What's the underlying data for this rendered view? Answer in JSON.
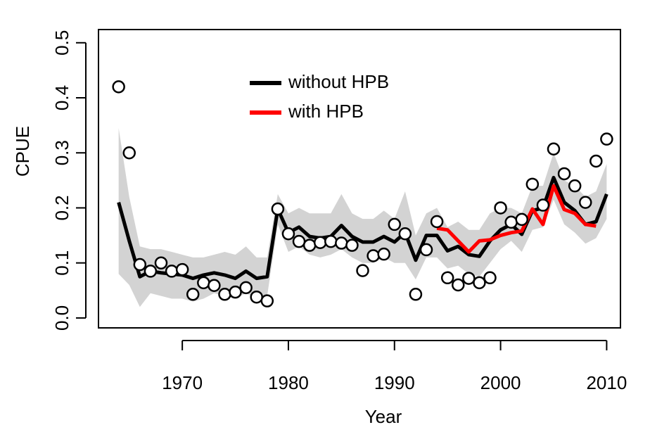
{
  "chart_data": {
    "type": "line",
    "xlabel": "Year",
    "ylabel": "CPUE",
    "xlim": [
      1962.1,
      2011.3
    ],
    "ylim": [
      -0.018,
      0.524
    ],
    "xticks": [
      1970,
      1980,
      1990,
      2000,
      2010
    ],
    "yticks": [
      {
        "value": 0,
        "label": "0.0"
      },
      0.1,
      0.2,
      0.3,
      0.4,
      0.5
    ],
    "x": [
      1964,
      1965,
      1966,
      1967,
      1968,
      1969,
      1970,
      1971,
      1972,
      1973,
      1974,
      1975,
      1976,
      1977,
      1978,
      1979,
      1980,
      1981,
      1982,
      1983,
      1984,
      1985,
      1986,
      1987,
      1988,
      1989,
      1990,
      1991,
      1992,
      1993,
      1994,
      1995,
      1996,
      1997,
      1998,
      1999,
      2000,
      2001,
      2002,
      2003,
      2004,
      2005,
      2006,
      2007,
      2008,
      2009,
      2010
    ],
    "band": {
      "color": "#d3d3d3",
      "upper": [
        0.345,
        0.22,
        0.13,
        0.125,
        0.125,
        0.12,
        0.115,
        0.11,
        0.11,
        0.115,
        0.12,
        0.115,
        0.13,
        0.11,
        0.11,
        0.225,
        0.19,
        0.2,
        0.19,
        0.19,
        0.19,
        0.225,
        0.19,
        0.18,
        0.18,
        0.195,
        0.18,
        0.23,
        0.15,
        0.19,
        0.2,
        0.165,
        0.175,
        0.16,
        0.16,
        0.19,
        0.2,
        0.2,
        0.19,
        0.24,
        0.24,
        0.3,
        0.25,
        0.24,
        0.22,
        0.23,
        0.28
      ],
      "lower": [
        0.08,
        0.06,
        0.02,
        0.045,
        0.04,
        0.035,
        0.035,
        0.03,
        0.035,
        0.045,
        0.04,
        0.035,
        0.045,
        0.035,
        0.04,
        0.17,
        0.12,
        0.13,
        0.115,
        0.11,
        0.115,
        0.125,
        0.11,
        0.1,
        0.1,
        0.11,
        0.1,
        0.1,
        0.07,
        0.11,
        0.11,
        0.09,
        0.095,
        0.08,
        0.075,
        0.1,
        0.125,
        0.14,
        0.12,
        0.16,
        0.165,
        0.215,
        0.17,
        0.155,
        0.135,
        0.145,
        0.18
      ]
    },
    "series": [
      {
        "name": "without HPB",
        "color": "#000000",
        "values": [
          0.21,
          0.14,
          0.075,
          0.085,
          0.082,
          0.08,
          0.078,
          0.072,
          0.078,
          0.082,
          0.078,
          0.072,
          0.085,
          0.072,
          0.075,
          0.198,
          0.155,
          0.165,
          0.148,
          0.145,
          0.148,
          0.168,
          0.148,
          0.138,
          0.138,
          0.148,
          0.138,
          0.155,
          0.105,
          0.15,
          0.15,
          0.122,
          0.13,
          0.115,
          0.112,
          0.14,
          0.16,
          0.17,
          0.152,
          0.195,
          0.2,
          0.255,
          0.21,
          0.195,
          0.17,
          0.175,
          0.225
        ]
      },
      {
        "name": "with HPB",
        "color": "#ff0000",
        "values": [
          null,
          null,
          null,
          null,
          null,
          null,
          null,
          null,
          null,
          null,
          null,
          null,
          null,
          null,
          null,
          null,
          null,
          null,
          null,
          null,
          null,
          null,
          null,
          null,
          null,
          null,
          null,
          null,
          null,
          null,
          0.163,
          0.16,
          0.14,
          0.12,
          0.14,
          0.142,
          0.15,
          0.155,
          0.158,
          0.198,
          0.17,
          0.24,
          0.197,
          0.19,
          0.17,
          0.167,
          null
        ]
      }
    ],
    "points": {
      "color": "#000000",
      "values": [
        0.42,
        0.3,
        0.097,
        0.085,
        0.1,
        0.085,
        0.088,
        0.043,
        0.064,
        0.059,
        0.043,
        0.047,
        0.055,
        0.038,
        0.031,
        0.198,
        0.153,
        0.139,
        0.132,
        0.137,
        0.139,
        0.136,
        0.132,
        0.086,
        0.113,
        0.116,
        0.17,
        0.153,
        0.043,
        0.124,
        0.175,
        0.073,
        0.06,
        0.072,
        0.064,
        0.073,
        0.2,
        0.174,
        0.179,
        0.243,
        0.205,
        0.307,
        0.262,
        0.24,
        0.21,
        0.285,
        0.325
      ]
    }
  }
}
